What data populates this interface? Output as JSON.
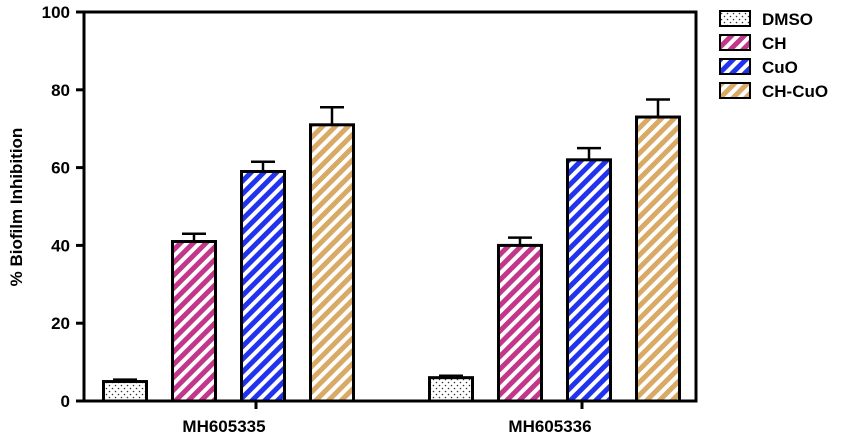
{
  "chart_data": {
    "type": "bar",
    "title": "",
    "xlabel": "",
    "ylabel": "% Biofilm Inhibition",
    "ylim": [
      0,
      100
    ],
    "yticks": [
      0,
      20,
      40,
      60,
      80,
      100
    ],
    "categories": [
      "MH605335",
      "MH605336"
    ],
    "series": [
      {
        "name": "DMSO",
        "values": [
          5,
          6
        ],
        "errors": [
          0.5,
          0.5
        ],
        "color": "#ffffff",
        "pattern": "dots"
      },
      {
        "name": "CH",
        "values": [
          41,
          40
        ],
        "errors": [
          2,
          2
        ],
        "color": "#c2378a",
        "pattern": "stripes"
      },
      {
        "name": "CuO",
        "values": [
          59,
          62
        ],
        "errors": [
          2.5,
          3
        ],
        "color": "#2233ee",
        "pattern": "stripes"
      },
      {
        "name": "CH-CuO",
        "values": [
          71,
          73
        ],
        "errors": [
          4.5,
          4.5
        ],
        "color": "#d9aa66",
        "pattern": "stripes"
      }
    ],
    "legend_position": "top-right",
    "grid": false
  }
}
